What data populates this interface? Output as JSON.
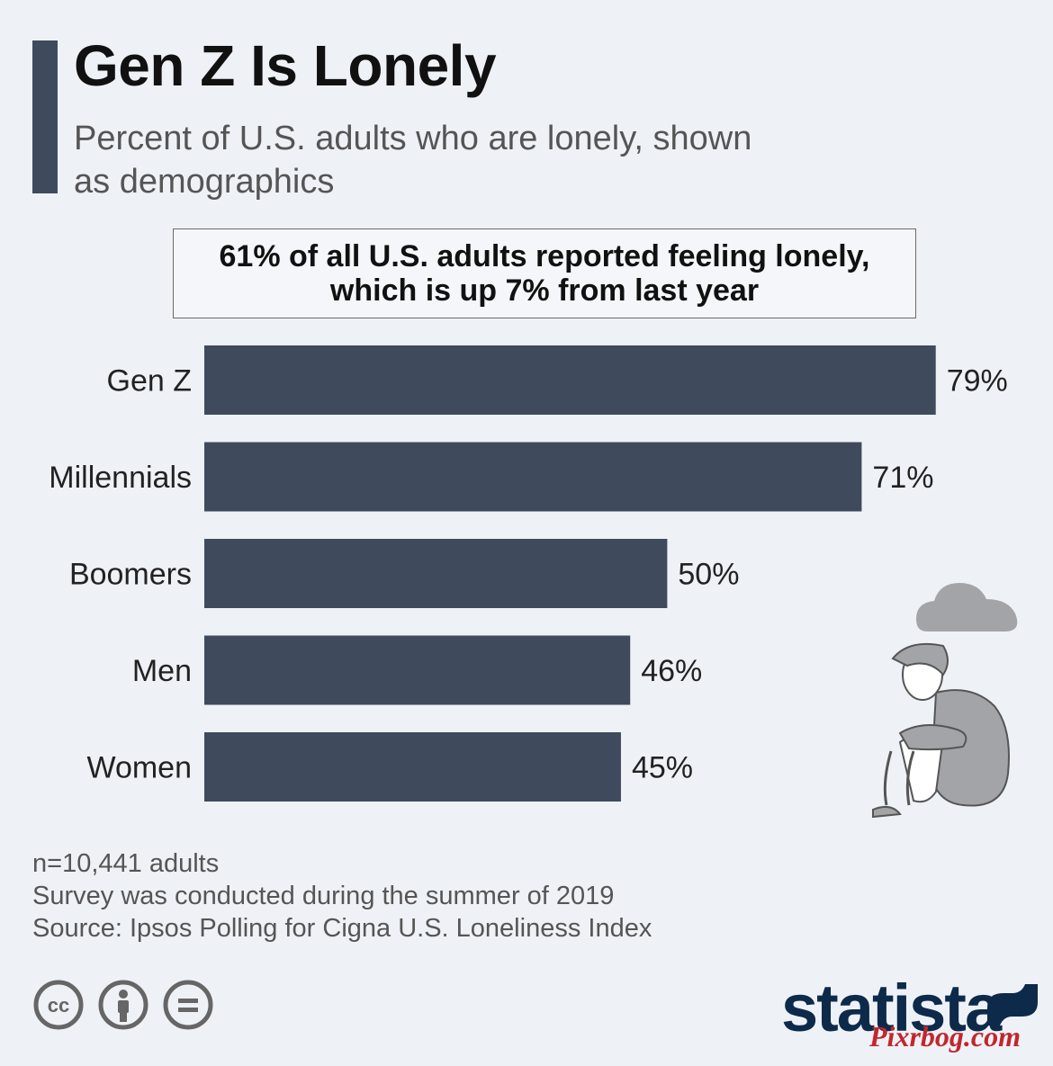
{
  "title": "Gen Z Is Lonely",
  "subtitle": "Percent of U.S. adults who are lonely, shown as demographics",
  "callout": {
    "line1": "61% of all U.S. adults reported feeling lonely,",
    "line2": "which is up 7% from last year"
  },
  "chart_data": {
    "type": "bar",
    "orientation": "horizontal",
    "categories": [
      "Gen Z",
      "Millennials",
      "Boomers",
      "Men",
      "Women"
    ],
    "values": [
      79,
      71,
      50,
      46,
      45
    ],
    "value_labels": [
      "79%",
      "71%",
      "50%",
      "46%",
      "45%"
    ],
    "xlim": [
      0,
      80
    ],
    "grid": false,
    "bar_color": "#3f4a5d"
  },
  "notes": [
    "n=10,441 adults",
    "Survey was conducted during the summer of 2019",
    "Source: Ipsos Polling for Cigna U.S. Loneliness Index"
  ],
  "license_icons": [
    "creative-commons-icon",
    "attribution-icon",
    "no-derivatives-icon"
  ],
  "brand": "statista",
  "watermark": "Pixrbog.com",
  "colors": {
    "background": "#eef2f7",
    "bar": "#3f4a5d",
    "brand": "#0d2a4a",
    "watermark": "#c1272d"
  }
}
